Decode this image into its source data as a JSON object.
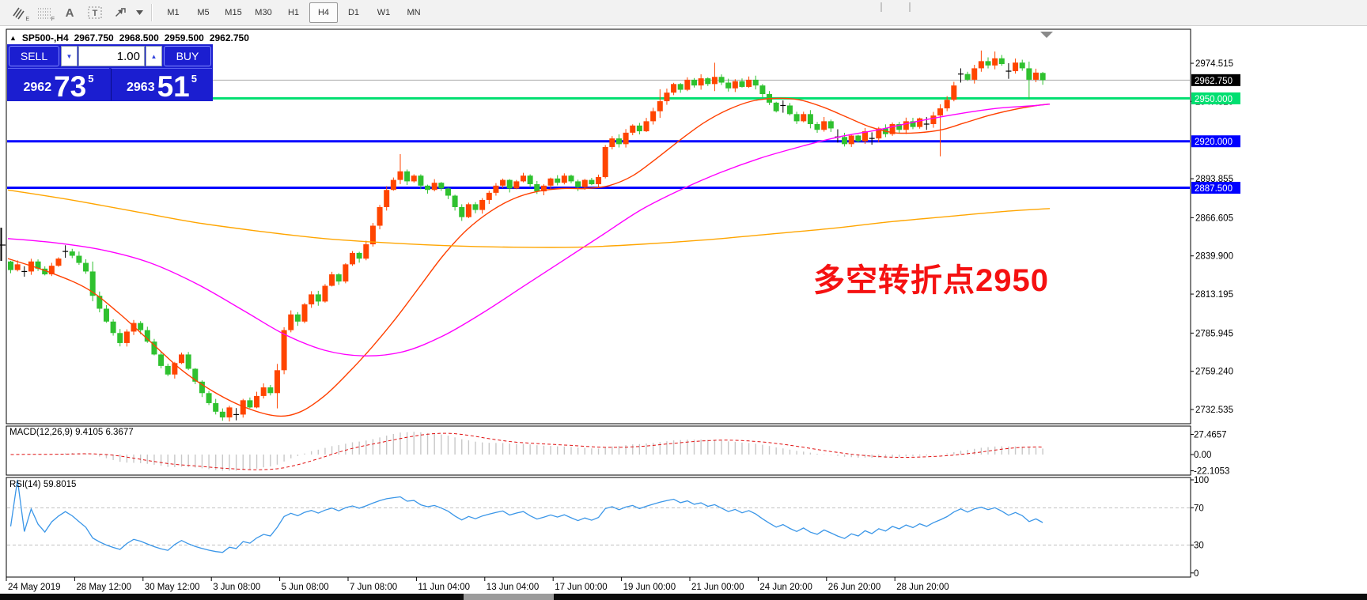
{
  "toolbar": {
    "icons": [
      {
        "name": "chart-style-icon",
        "sub": "E"
      },
      {
        "name": "grid-icon",
        "sub": "F"
      },
      {
        "name": "text-label-icon",
        "glyph": "A"
      },
      {
        "name": "text-box-icon",
        "glyph": "T"
      },
      {
        "name": "cursor-arrows-icon",
        "glyph": ""
      }
    ],
    "timeframes": [
      "M1",
      "M5",
      "M15",
      "M30",
      "H1",
      "H4",
      "D1",
      "W1",
      "MN"
    ],
    "active_timeframe": "H4"
  },
  "chart_header": {
    "collapse_arrow": "▲",
    "symbol": "SP500-,H4",
    "open": "2967.750",
    "high": "2968.500",
    "low": "2959.500",
    "close": "2962.750"
  },
  "trade_panel": {
    "sell_label": "SELL",
    "buy_label": "BUY",
    "volume": "1.00",
    "spin_down": "▼",
    "spin_up": "▲",
    "sell_price": {
      "small": "2962",
      "big": "73",
      "sup": "5"
    },
    "buy_price": {
      "small": "2963",
      "big": "51",
      "sup": "5"
    }
  },
  "annotation": {
    "text": "多空转折点2950",
    "color": "#f51111"
  },
  "macd_panel": {
    "label": "MACD(12,26,9) 9.4105 6.3677",
    "axis_labels": [
      "27.4657",
      "0.00",
      "-22.1053"
    ],
    "axis_values": [
      27.4657,
      0,
      -22.1053
    ]
  },
  "rsi_panel": {
    "label": "RSI(14) 59.8015",
    "axis_labels": [
      "100",
      "70",
      "30",
      "0"
    ],
    "axis_values": [
      100,
      70,
      30,
      0
    ]
  },
  "chart_data": {
    "type": "candlestick",
    "title": "SP500-,H4",
    "symbol": "SP500-",
    "timeframe": "H4",
    "ohlc_display": {
      "open": "2967.750",
      "high": "2968.500",
      "low": "2959.500",
      "close": "2962.750"
    },
    "y_range": [
      2722.6,
      2998.3
    ],
    "bull_color": "#ff4500",
    "bear_color": "#2fc12f",
    "doji_color": "#000000",
    "closes": [
      2830,
      2834,
      2829,
      2836,
      2831,
      2827,
      2833,
      2838,
      2843,
      2840,
      2835,
      2829,
      2812,
      2803,
      2794,
      2786,
      2779,
      2787,
      2793,
      2788,
      2780,
      2771,
      2763,
      2757,
      2765,
      2771,
      2761,
      2752,
      2744,
      2737,
      2731,
      2727,
      2734,
      2729,
      2739,
      2734,
      2742,
      2748,
      2744,
      2760,
      2788,
      2799,
      2794,
      2806,
      2813,
      2808,
      2819,
      2827,
      2822,
      2834,
      2842,
      2838,
      2848,
      2861,
      2874,
      2886,
      2893,
      2899,
      2892,
      2896,
      2889,
      2886,
      2891,
      2887,
      2882,
      2874,
      2867,
      2876,
      2872,
      2879,
      2884,
      2889,
      2893,
      2887,
      2892,
      2896,
      2890,
      2885,
      2889,
      2894,
      2891,
      2896,
      2892,
      2888,
      2893,
      2890,
      2895,
      2916,
      2922,
      2918,
      2926,
      2931,
      2927,
      2934,
      2941,
      2948,
      2954,
      2960,
      2956,
      2963,
      2959,
      2964,
      2960,
      2965,
      2961,
      2957,
      2962,
      2958,
      2963,
      2959,
      2953,
      2947,
      2941,
      2945,
      2939,
      2934,
      2939,
      2932,
      2928,
      2934,
      2929,
      2923,
      2918,
      2924,
      2920,
      2927,
      2922,
      2929,
      2925,
      2932,
      2928,
      2934,
      2930,
      2936,
      2932,
      2938,
      2943,
      2949,
      2959,
      2967,
      2963,
      2971,
      2976,
      2973,
      2978,
      2974,
      2969,
      2975,
      2971,
      2963,
      2968,
      2962.75
    ],
    "last_bar_ohlc": [
      2967.75,
      2968.5,
      2959.5,
      2962.75
    ],
    "doji_bars": [
      2,
      8,
      33,
      113,
      121,
      126,
      134,
      139,
      146
    ],
    "wick_overrides": {
      "12": [
        6,
        1
      ],
      "39": [
        2,
        9
      ],
      "57": [
        11,
        1
      ],
      "95": [
        6,
        2
      ],
      "103": [
        9,
        2
      ],
      "136": [
        2,
        26
      ],
      "142": [
        5,
        1
      ],
      "144": [
        4,
        1
      ],
      "149": [
        3,
        13
      ]
    },
    "price_ticks": [
      "2974.515",
      "2947.810",
      "2893.855",
      "2866.605",
      "2839.900",
      "2813.195",
      "2785.945",
      "2759.240",
      "2732.535"
    ],
    "hlines": [
      {
        "price": 2962.75,
        "label": "2962.750",
        "color": "#ababab",
        "badge_bg": "#000000",
        "width": 1
      },
      {
        "price": 2950.0,
        "label": "2950.000",
        "color": "#00df70",
        "badge_bg": "#00df70",
        "width": 3
      },
      {
        "price": 2920.0,
        "label": "2920.000",
        "color": "#0000ff",
        "badge_bg": "#0000ff",
        "width": 3
      },
      {
        "price": 2887.5,
        "label": "2887.500",
        "color": "#0000ff",
        "badge_bg": "#0000ff",
        "width": 3
      }
    ],
    "ma_lines": [
      {
        "name": "ma-fast",
        "color": "#ff4000",
        "points": [
          [
            0,
            2838
          ],
          [
            50,
            2829
          ],
          [
            100,
            2817
          ],
          [
            140,
            2800
          ],
          [
            180,
            2780
          ],
          [
            220,
            2760
          ],
          [
            260,
            2745
          ],
          [
            300,
            2734
          ],
          [
            340,
            2728
          ],
          [
            370,
            2731
          ],
          [
            400,
            2742
          ],
          [
            430,
            2758
          ],
          [
            460,
            2776
          ],
          [
            490,
            2796
          ],
          [
            520,
            2818
          ],
          [
            550,
            2840
          ],
          [
            580,
            2858
          ],
          [
            610,
            2871
          ],
          [
            640,
            2880
          ],
          [
            670,
            2885
          ],
          [
            700,
            2887
          ],
          [
            730,
            2887
          ],
          [
            760,
            2889
          ],
          [
            790,
            2896
          ],
          [
            820,
            2908
          ],
          [
            850,
            2921
          ],
          [
            880,
            2933
          ],
          [
            910,
            2942
          ],
          [
            940,
            2948
          ],
          [
            970,
            2950
          ],
          [
            1000,
            2949
          ],
          [
            1030,
            2944
          ],
          [
            1060,
            2937
          ],
          [
            1090,
            2930
          ],
          [
            1120,
            2926
          ],
          [
            1150,
            2926
          ],
          [
            1180,
            2928
          ],
          [
            1210,
            2933
          ],
          [
            1240,
            2938
          ],
          [
            1270,
            2942
          ],
          [
            1300,
            2945
          ],
          [
            1317,
            2946
          ]
        ]
      },
      {
        "name": "ma-mid",
        "color": "#ff00ff",
        "points": [
          [
            0,
            2852
          ],
          [
            60,
            2849
          ],
          [
            120,
            2844
          ],
          [
            180,
            2835
          ],
          [
            240,
            2820
          ],
          [
            300,
            2801
          ],
          [
            350,
            2785
          ],
          [
            400,
            2774
          ],
          [
            450,
            2770
          ],
          [
            500,
            2773
          ],
          [
            550,
            2784
          ],
          [
            600,
            2800
          ],
          [
            650,
            2818
          ],
          [
            700,
            2836
          ],
          [
            750,
            2854
          ],
          [
            800,
            2872
          ],
          [
            850,
            2886
          ],
          [
            900,
            2898
          ],
          [
            950,
            2908
          ],
          [
            1000,
            2916
          ],
          [
            1050,
            2923
          ],
          [
            1100,
            2928
          ],
          [
            1150,
            2934
          ],
          [
            1200,
            2939
          ],
          [
            1250,
            2943
          ],
          [
            1300,
            2945
          ],
          [
            1317,
            2946
          ]
        ]
      },
      {
        "name": "ma-slow",
        "color": "#ffa500",
        "points": [
          [
            0,
            2886
          ],
          [
            80,
            2879
          ],
          [
            160,
            2871
          ],
          [
            240,
            2863
          ],
          [
            320,
            2857
          ],
          [
            400,
            2852
          ],
          [
            480,
            2849
          ],
          [
            560,
            2847
          ],
          [
            640,
            2846
          ],
          [
            720,
            2846
          ],
          [
            800,
            2848
          ],
          [
            880,
            2851
          ],
          [
            960,
            2855
          ],
          [
            1040,
            2859
          ],
          [
            1120,
            2864
          ],
          [
            1200,
            2868
          ],
          [
            1260,
            2871
          ],
          [
            1317,
            2873
          ]
        ]
      }
    ],
    "x_labels": [
      "24 May 2019",
      "28 May 12:00",
      "30 May 12:00",
      "3 Jun 08:00",
      "5 Jun 08:00",
      "7 Jun 08:00",
      "11 Jun 04:00",
      "13 Jun 04:00",
      "17 Jun 00:00",
      "19 Jun 00:00",
      "21 Jun 00:00",
      "24 Jun 20:00",
      "26 Jun 20:00",
      "28 Jun 20:00"
    ],
    "macd": {
      "params": [
        12,
        26,
        9
      ],
      "histogram_color": "#c8c8c8",
      "signal_color": "#e01010"
    },
    "rsi": {
      "period": 14,
      "line_color": "#3a96e8",
      "levels": [
        70,
        30
      ],
      "level_color": "#c0c0c0"
    }
  }
}
